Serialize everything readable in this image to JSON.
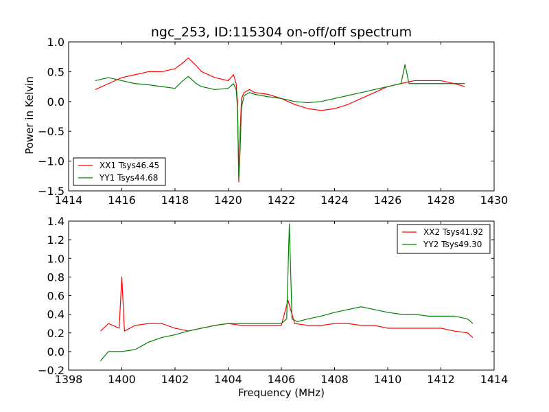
{
  "chart_data": [
    {
      "type": "line",
      "title": "ngc_253, ID:115304 on-off/off spectrum",
      "xlabel": "",
      "ylabel": "Power in Kelvin",
      "xlim": [
        1414,
        1430
      ],
      "ylim": [
        -1.5,
        1.0
      ],
      "xticks": [
        1414,
        1416,
        1418,
        1420,
        1422,
        1424,
        1426,
        1428,
        1430
      ],
      "yticks": [
        -1.5,
        -1.0,
        -0.5,
        0.0,
        0.5,
        1.0
      ],
      "xtick_labels": [
        "1414",
        "1416",
        "1418",
        "1420",
        "1422",
        "1424",
        "1426",
        "1428",
        "1430"
      ],
      "ytick_labels": [
        "−1.5",
        "−1.0",
        "−0.5",
        "0.0",
        "0.5",
        "1.0"
      ],
      "legend_position": "lower-left",
      "grid": false,
      "series": [
        {
          "name": "XX1 Tsys46.45",
          "color": "#ff0000",
          "x": [
            1415.0,
            1415.5,
            1416.0,
            1416.5,
            1417.0,
            1417.5,
            1418.0,
            1418.3,
            1418.5,
            1418.8,
            1419.0,
            1419.5,
            1420.0,
            1420.2,
            1420.3,
            1420.35,
            1420.4,
            1420.45,
            1420.5,
            1420.6,
            1420.8,
            1421.0,
            1421.5,
            1422.0,
            1422.5,
            1423.0,
            1423.5,
            1424.0,
            1424.5,
            1425.0,
            1425.5,
            1426.0,
            1426.5,
            1427.0,
            1427.5,
            1428.0,
            1428.5,
            1428.9
          ],
          "values": [
            0.2,
            0.3,
            0.4,
            0.45,
            0.5,
            0.5,
            0.55,
            0.65,
            0.73,
            0.6,
            0.5,
            0.4,
            0.35,
            0.45,
            0.3,
            0.0,
            -1.35,
            -0.5,
            0.05,
            0.15,
            0.2,
            0.15,
            0.12,
            0.05,
            -0.05,
            -0.12,
            -0.15,
            -0.12,
            -0.05,
            0.05,
            0.15,
            0.25,
            0.3,
            0.35,
            0.35,
            0.35,
            0.3,
            0.25
          ]
        },
        {
          "name": "YY1 Tsys44.68",
          "color": "#008000",
          "x": [
            1415.0,
            1415.5,
            1416.0,
            1416.5,
            1417.0,
            1417.5,
            1418.0,
            1418.3,
            1418.5,
            1418.8,
            1419.0,
            1419.5,
            1420.0,
            1420.2,
            1420.3,
            1420.35,
            1420.4,
            1420.45,
            1420.5,
            1420.6,
            1420.8,
            1421.0,
            1421.5,
            1422.0,
            1422.5,
            1423.0,
            1423.5,
            1424.0,
            1424.5,
            1425.0,
            1425.5,
            1426.0,
            1426.5,
            1426.65,
            1426.8,
            1427.0,
            1427.5,
            1428.0,
            1428.5,
            1428.9
          ],
          "values": [
            0.35,
            0.4,
            0.35,
            0.3,
            0.28,
            0.25,
            0.22,
            0.35,
            0.42,
            0.3,
            0.25,
            0.2,
            0.22,
            0.3,
            0.2,
            -0.1,
            -1.3,
            -0.8,
            -0.1,
            0.1,
            0.15,
            0.12,
            0.08,
            0.05,
            0.0,
            -0.02,
            0.0,
            0.05,
            0.1,
            0.15,
            0.2,
            0.25,
            0.3,
            0.62,
            0.3,
            0.3,
            0.3,
            0.3,
            0.3,
            0.3
          ]
        }
      ]
    },
    {
      "type": "line",
      "title": "",
      "xlabel": "Frequency (MHz)",
      "ylabel": "",
      "xlim": [
        1398,
        1414
      ],
      "ylim": [
        -0.2,
        1.4
      ],
      "xticks": [
        1398,
        1400,
        1402,
        1404,
        1406,
        1408,
        1410,
        1412,
        1414
      ],
      "yticks": [
        -0.2,
        0.0,
        0.2,
        0.4,
        0.6,
        0.8,
        1.0,
        1.2,
        1.4
      ],
      "xtick_labels": [
        "1398",
        "1400",
        "1402",
        "1404",
        "1406",
        "1408",
        "1410",
        "1412",
        "1414"
      ],
      "ytick_labels": [
        "−0.2",
        "0.0",
        "0.2",
        "0.4",
        "0.6",
        "0.8",
        "1.0",
        "1.2",
        "1.4"
      ],
      "legend_position": "top-right",
      "grid": false,
      "series": [
        {
          "name": "XX2 Tsys41.92",
          "color": "#ff0000",
          "x": [
            1399.2,
            1399.5,
            1399.9,
            1400.0,
            1400.1,
            1400.5,
            1401.0,
            1401.5,
            1402.0,
            1402.5,
            1403.0,
            1403.5,
            1404.0,
            1404.5,
            1405.0,
            1405.5,
            1406.0,
            1406.25,
            1406.5,
            1407.0,
            1407.5,
            1408.0,
            1408.5,
            1409.0,
            1409.5,
            1410.0,
            1410.5,
            1411.0,
            1411.5,
            1412.0,
            1412.5,
            1413.0,
            1413.2
          ],
          "values": [
            0.22,
            0.3,
            0.25,
            0.8,
            0.22,
            0.28,
            0.3,
            0.3,
            0.25,
            0.22,
            0.25,
            0.28,
            0.3,
            0.28,
            0.28,
            0.28,
            0.28,
            0.55,
            0.3,
            0.28,
            0.28,
            0.3,
            0.3,
            0.28,
            0.28,
            0.25,
            0.25,
            0.25,
            0.25,
            0.25,
            0.22,
            0.2,
            0.15
          ]
        },
        {
          "name": "YY2 Tsys49.30",
          "color": "#008000",
          "x": [
            1399.2,
            1399.5,
            1400.0,
            1400.5,
            1401.0,
            1401.5,
            1402.0,
            1402.5,
            1403.0,
            1403.5,
            1404.0,
            1404.5,
            1405.0,
            1405.5,
            1406.0,
            1406.2,
            1406.3,
            1406.4,
            1406.6,
            1407.0,
            1407.5,
            1408.0,
            1408.5,
            1409.0,
            1409.5,
            1410.0,
            1410.5,
            1411.0,
            1411.5,
            1412.0,
            1412.5,
            1413.0,
            1413.2
          ],
          "values": [
            -0.1,
            0.0,
            0.0,
            0.02,
            0.1,
            0.15,
            0.18,
            0.22,
            0.25,
            0.28,
            0.3,
            0.3,
            0.3,
            0.3,
            0.3,
            0.35,
            1.37,
            0.35,
            0.32,
            0.35,
            0.38,
            0.42,
            0.45,
            0.48,
            0.45,
            0.42,
            0.4,
            0.4,
            0.38,
            0.38,
            0.38,
            0.35,
            0.3
          ]
        }
      ]
    }
  ]
}
